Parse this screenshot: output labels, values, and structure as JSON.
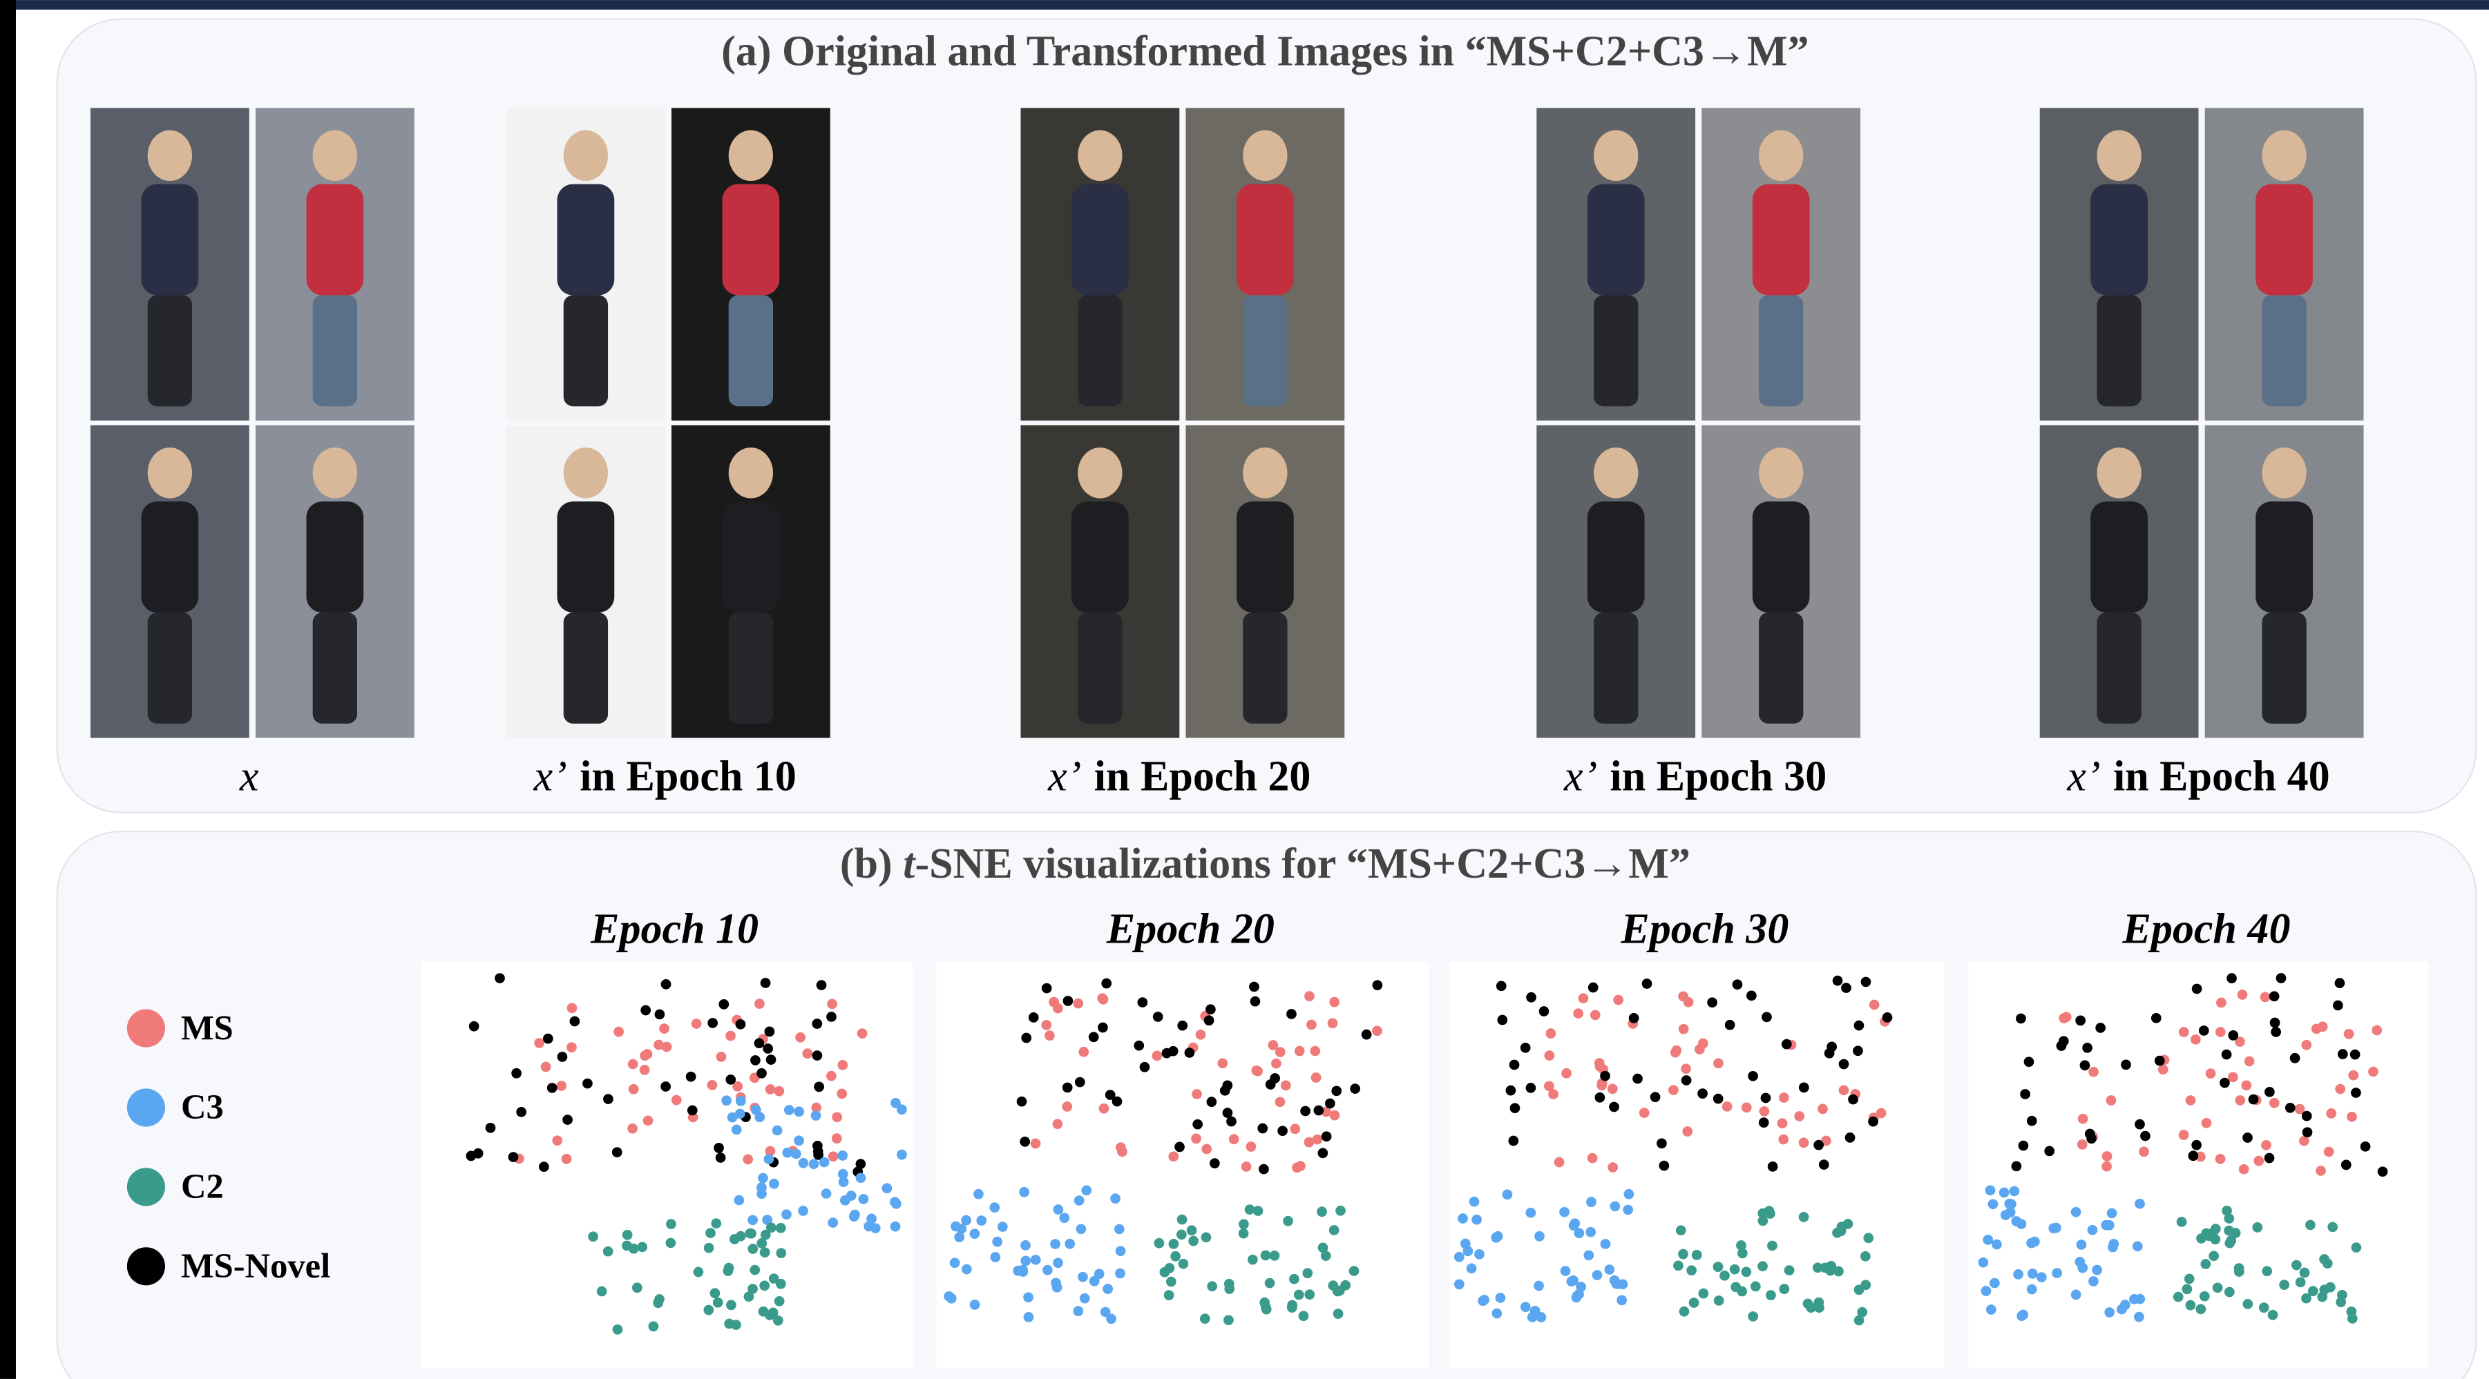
{
  "panel_a": {
    "title": "(a) Original and Transformed Images in “MS+C2+C3→M”",
    "captions": [
      {
        "symbol": "x"
      },
      {
        "symbol": "x’",
        "label": "in Epoch 10"
      },
      {
        "symbol": "x’",
        "label": "in Epoch 20"
      },
      {
        "symbol": "x’",
        "label": "in Epoch 30"
      },
      {
        "symbol": "x’",
        "label": "in Epoch 40"
      }
    ]
  },
  "panel_b": {
    "title_prefix": "(b) ",
    "title_italic": "t",
    "title_rest": "-SNE visualizations for “MS+C2+C3→M”",
    "plot_titles": [
      "Epoch 10",
      "Epoch 20",
      "Epoch 30",
      "Epoch 40"
    ],
    "legend": [
      {
        "name": "MS",
        "color": "#f07a7a"
      },
      {
        "name": "C3",
        "color": "#5aa6f0"
      },
      {
        "name": "C2",
        "color": "#3a9a8c"
      },
      {
        "name": "MS-Novel",
        "color": "#000000"
      }
    ]
  }
}
